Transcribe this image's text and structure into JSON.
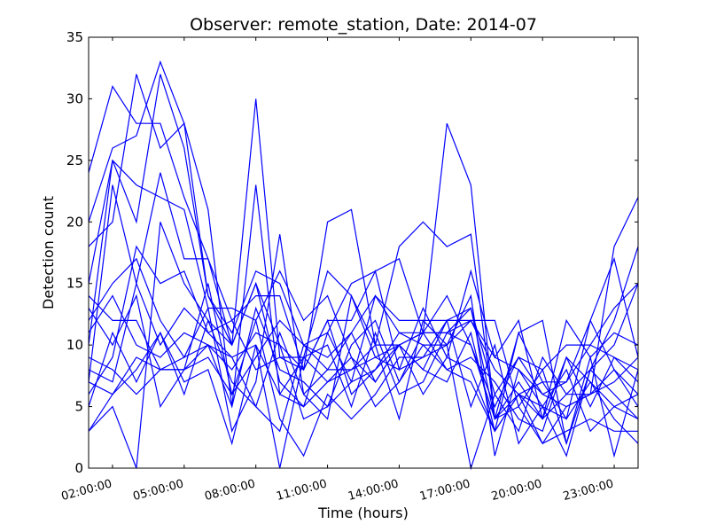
{
  "chart_data": {
    "type": "line",
    "title": "Observer: remote_station, Date: 2014-07",
    "xlabel": "Time (hours)",
    "ylabel": "Detection count",
    "ylim": [
      0,
      35
    ],
    "xlim": [
      1,
      24
    ],
    "yticks": [
      0,
      5,
      10,
      15,
      20,
      25,
      30,
      35
    ],
    "xticks": [
      {
        "value": 2,
        "label": "02:00:00"
      },
      {
        "value": 5,
        "label": "05:00:00"
      },
      {
        "value": 8,
        "label": "08:00:00"
      },
      {
        "value": 11,
        "label": "11:00:00"
      },
      {
        "value": 14,
        "label": "14:00:00"
      },
      {
        "value": 17,
        "label": "17:00:00"
      },
      {
        "value": 20,
        "label": "20:00:00"
      },
      {
        "value": 23,
        "label": "23:00:00"
      }
    ],
    "grid": false,
    "legend": false,
    "line_color": "#0000ff",
    "x": [
      1,
      2,
      3,
      4,
      5,
      6,
      7,
      8,
      9,
      10,
      11,
      12,
      13,
      14,
      15,
      16,
      17,
      18,
      19,
      20,
      21,
      22,
      23,
      24
    ],
    "series": [
      {
        "values": [
          24,
          31,
          28,
          28,
          22,
          17,
          10,
          30,
          9,
          8,
          20,
          21,
          10,
          18,
          20,
          18,
          19,
          4,
          6,
          2,
          5,
          6,
          18,
          22
        ]
      },
      {
        "values": [
          20,
          26,
          27,
          33,
          28,
          21,
          5,
          23,
          6,
          9,
          16,
          14,
          9,
          10,
          11,
          28,
          23,
          4,
          11,
          7,
          4,
          12,
          17,
          9
        ]
      },
      {
        "values": [
          10,
          25,
          20,
          32,
          26,
          14,
          11,
          16,
          15,
          10,
          11,
          15,
          16,
          17,
          11,
          11,
          12,
          9,
          8,
          6,
          7,
          10,
          9,
          8
        ]
      },
      {
        "values": [
          18,
          20,
          32,
          26,
          28,
          14,
          10,
          15,
          10,
          4,
          5,
          7,
          14,
          11,
          10,
          10,
          14,
          1,
          8,
          5,
          1,
          8,
          10,
          15
        ]
      },
      {
        "values": [
          7,
          23,
          15,
          24,
          17,
          17,
          12,
          14,
          14,
          8,
          12,
          12,
          16,
          8,
          13,
          9,
          16,
          9,
          12,
          4,
          12,
          9,
          11,
          10
        ]
      },
      {
        "values": [
          15,
          25,
          23,
          22,
          21,
          13,
          13,
          12,
          16,
          12,
          14,
          9,
          7,
          10,
          8,
          7,
          11,
          3,
          11,
          12,
          2,
          8,
          12,
          18
        ]
      },
      {
        "values": [
          6,
          9,
          18,
          15,
          16,
          11,
          9,
          5,
          3,
          10,
          9,
          11,
          14,
          12,
          12,
          12,
          12,
          12,
          5,
          8,
          10,
          10,
          13,
          15
        ]
      },
      {
        "values": [
          12,
          15,
          17,
          12,
          9,
          13,
          3,
          7,
          19,
          6,
          4,
          14,
          10,
          4,
          12,
          10,
          0,
          6,
          9,
          6,
          5,
          6,
          7,
          9
        ]
      },
      {
        "values": [
          14,
          12,
          12,
          8,
          8,
          9,
          6,
          12,
          4,
          1,
          6,
          4,
          6,
          9,
          9,
          12,
          13,
          6,
          3,
          9,
          6,
          8,
          6,
          4
        ]
      },
      {
        "values": [
          3,
          5,
          0,
          20,
          15,
          12,
          10,
          15,
          7,
          5,
          11,
          7,
          8,
          11,
          11,
          14,
          10,
          4,
          7,
          4,
          9,
          5,
          9,
          7
        ]
      },
      {
        "values": [
          8,
          7,
          15,
          10,
          13,
          11,
          12,
          8,
          9,
          9,
          7,
          9,
          5,
          7,
          11,
          8,
          7,
          3,
          6,
          7,
          7,
          12,
          8,
          6
        ]
      },
      {
        "values": [
          11,
          14,
          10,
          9,
          11,
          10,
          8,
          11,
          10,
          8,
          12,
          6,
          8,
          10,
          8,
          12,
          5,
          10,
          2,
          5,
          8,
          3,
          5,
          4
        ]
      },
      {
        "values": [
          9,
          8,
          6,
          8,
          8,
          10,
          5,
          13,
          8,
          7,
          5,
          10,
          12,
          7,
          10,
          8,
          9,
          7,
          4,
          3,
          9,
          7,
          4,
          2
        ]
      },
      {
        "values": [
          13,
          10,
          14,
          5,
          8,
          15,
          6,
          9,
          12,
          10,
          8,
          11,
          7,
          10,
          6,
          9,
          8,
          3,
          6,
          4,
          6,
          6,
          8,
          5
        ]
      },
      {
        "values": [
          5,
          11,
          7,
          11,
          7,
          8,
          2,
          10,
          0,
          9,
          10,
          5,
          11,
          6,
          7,
          11,
          10,
          5,
          9,
          8,
          2,
          9,
          1,
          8
        ]
      },
      {
        "values": [
          7,
          6,
          9,
          8,
          9,
          10,
          9,
          10,
          6,
          5,
          7,
          8,
          10,
          10,
          11,
          11,
          13,
          4,
          5,
          2,
          3,
          4,
          3,
          3
        ]
      },
      {
        "values": [
          3,
          6,
          8,
          11,
          6,
          12,
          7,
          5,
          11,
          6,
          8,
          8,
          9,
          8,
          9,
          10,
          12,
          8,
          6,
          5,
          4,
          7,
          5,
          6
        ]
      }
    ]
  }
}
